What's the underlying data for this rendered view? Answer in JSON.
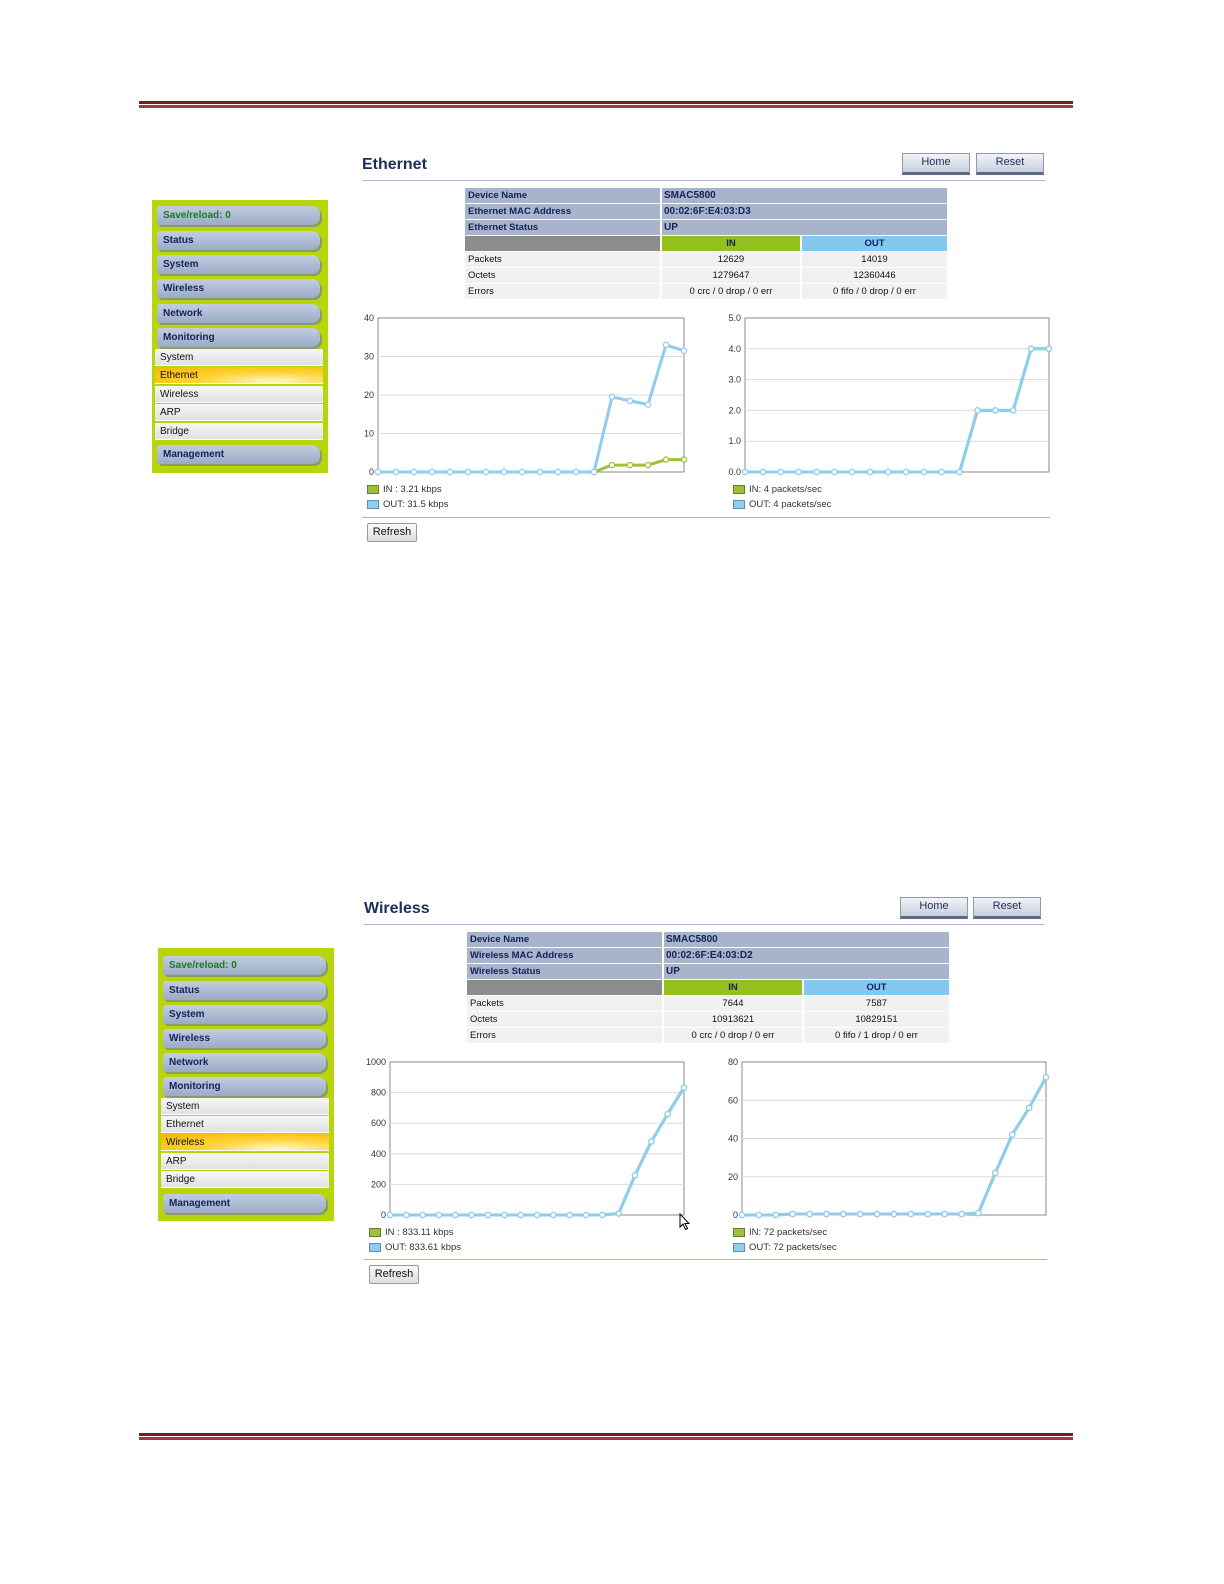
{
  "sections": [
    {
      "title": "Ethernet",
      "buttons": {
        "home": "Home",
        "reset": "Reset"
      },
      "sidebar": {
        "save": "Save/reload: 0",
        "top": [
          "Status",
          "System",
          "Wireless",
          "Network",
          "Monitoring"
        ],
        "sub": [
          "System",
          "Ethernet",
          "Wireless",
          "ARP",
          "Bridge"
        ],
        "active_sub": "Ethernet",
        "bottom": "Management"
      },
      "info": {
        "rows": [
          {
            "label": "Device Name",
            "value": "SMAC5800"
          },
          {
            "label": "Ethernet MAC Address",
            "value": "00:02:6F:E4:03:D3"
          },
          {
            "label": "Ethernet Status",
            "value": "UP"
          }
        ],
        "in_header": "IN",
        "out_header": "OUT",
        "stats": [
          {
            "label": "Packets",
            "in": "12629",
            "out": "14019"
          },
          {
            "label": "Octets",
            "in": "1279647",
            "out": "12360446"
          },
          {
            "label": "Errors",
            "in": "0 crc / 0 drop / 0 err",
            "out": "0 fifo / 0 drop / 0 err"
          }
        ]
      },
      "refresh_label": "Refresh",
      "chart_data": [
        {
          "type": "line",
          "ylim": [
            0,
            40
          ],
          "yticks": [
            "0",
            "10",
            "20",
            "30",
            "40"
          ],
          "series": [
            {
              "name": "IN : 3.21 kbps",
              "values": [
                0,
                0,
                0,
                0,
                0,
                0,
                0,
                0,
                0,
                0,
                0,
                0,
                0,
                1.8,
                1.8,
                1.8,
                3.2,
                3.2
              ],
              "color": "#9dc23a"
            },
            {
              "name": "OUT: 31.5 kbps",
              "values": [
                0,
                0,
                0,
                0,
                0,
                0,
                0,
                0,
                0,
                0,
                0,
                0,
                0,
                19.5,
                18.5,
                17.5,
                33,
                31.5
              ],
              "color": "#8fcdef"
            }
          ]
        },
        {
          "type": "line",
          "ylim": [
            0,
            5
          ],
          "yticks": [
            "0.0",
            "1.0",
            "2.0",
            "3.0",
            "4.0",
            "5.0"
          ],
          "series": [
            {
              "name": "IN: 4 packets/sec",
              "values": [
                0,
                0,
                0,
                0,
                0,
                0,
                0,
                0,
                0,
                0,
                0,
                0,
                0,
                2,
                2,
                2,
                4,
                4
              ],
              "color": "#9dc23a"
            },
            {
              "name": "OUT: 4 packets/sec",
              "values": [
                0,
                0,
                0,
                0,
                0,
                0,
                0,
                0,
                0,
                0,
                0,
                0,
                0,
                2,
                2,
                2,
                4,
                4
              ],
              "color": "#8fcdef"
            }
          ]
        }
      ]
    },
    {
      "title": "Wireless",
      "buttons": {
        "home": "Home",
        "reset": "Reset"
      },
      "sidebar": {
        "save": "Save/reload: 0",
        "top": [
          "Status",
          "System",
          "Wireless",
          "Network",
          "Monitoring"
        ],
        "sub": [
          "System",
          "Ethernet",
          "Wireless",
          "ARP",
          "Bridge"
        ],
        "active_sub": "Wireless",
        "bottom": "Management"
      },
      "info": {
        "rows": [
          {
            "label": "Device Name",
            "value": "SMAC5800"
          },
          {
            "label": "Wireless MAC Address",
            "value": "00:02:6F:E4:03:D2"
          },
          {
            "label": "Wireless Status",
            "value": "UP"
          }
        ],
        "in_header": "IN",
        "out_header": "OUT",
        "stats": [
          {
            "label": "Packets",
            "in": "7644",
            "out": "7587"
          },
          {
            "label": "Octets",
            "in": "10913621",
            "out": "10829151"
          },
          {
            "label": "Errors",
            "in": "0 crc / 0 drop / 0 err",
            "out": "0 fifo / 1 drop / 0 err"
          }
        ]
      },
      "refresh_label": "Refresh",
      "chart_data": [
        {
          "type": "line",
          "ylim": [
            0,
            1000
          ],
          "yticks": [
            "0",
            "200",
            "400",
            "600",
            "800",
            "1000"
          ],
          "series": [
            {
              "name": "IN : 833.11 kbps",
              "values": [
                0,
                0,
                0,
                0,
                0,
                0,
                0,
                0,
                0,
                0,
                0,
                0,
                0,
                0,
                10,
                260,
                480,
                660,
                833
              ],
              "color": "#9dc23a"
            },
            {
              "name": "OUT: 833.61 kbps",
              "values": [
                0,
                0,
                0,
                0,
                0,
                0,
                0,
                0,
                0,
                0,
                0,
                0,
                0,
                0,
                10,
                260,
                480,
                660,
                833
              ],
              "color": "#8fcdef"
            }
          ]
        },
        {
          "type": "line",
          "ylim": [
            0,
            80
          ],
          "yticks": [
            "0",
            "20",
            "40",
            "60",
            "80"
          ],
          "series": [
            {
              "name": "IN: 72 packets/sec",
              "values": [
                0,
                0,
                0,
                0.5,
                0.5,
                0.5,
                0.5,
                0.5,
                0.5,
                0.5,
                0.5,
                0.5,
                0.5,
                0.5,
                1,
                22,
                42,
                56,
                72
              ],
              "color": "#9dc23a"
            },
            {
              "name": "OUT: 72 packets/sec",
              "values": [
                0,
                0,
                0,
                0.5,
                0.5,
                0.5,
                0.5,
                0.5,
                0.5,
                0.5,
                0.5,
                0.5,
                0.5,
                0.5,
                1,
                22,
                42,
                56,
                72
              ],
              "color": "#8fcdef"
            }
          ]
        }
      ]
    }
  ]
}
